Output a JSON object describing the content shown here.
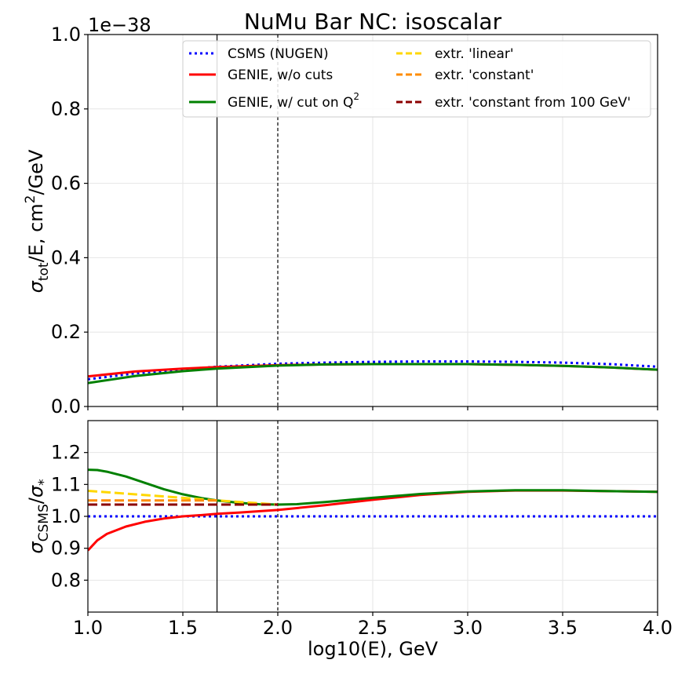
{
  "chart_data": [
    {
      "type": "line",
      "title": "NuMu Bar NC: isoscalar",
      "ylabel": "σ_tot/E, cm^2/GeV",
      "ylabel_parts": {
        "sym": "σ",
        "sub": "tot",
        "mid": "/E, cm",
        "sup": "2",
        "end": "/GeV"
      },
      "offset_text": "1e−38",
      "xlim": [
        1.0,
        4.0
      ],
      "ylim": [
        0.0,
        1.0
      ],
      "yticks": [
        "0.0",
        "0.2",
        "0.4",
        "0.6",
        "0.8",
        "1.0"
      ],
      "grid": true,
      "legend_location": "top-right",
      "legend": [
        {
          "label": "CSMS (NUGEN)",
          "color": "#0000ff",
          "style": "dotted"
        },
        {
          "label": "GENIE, w/o cuts",
          "color": "#ff0000",
          "style": "solid"
        },
        {
          "label": "GENIE, w/ cut on Q",
          "label_sup": "2",
          "color": "#008000",
          "style": "solid"
        },
        {
          "label": "extr. 'linear'",
          "color": "#ffd700",
          "style": "dashed"
        },
        {
          "label": "extr. 'constant'",
          "color": "#ff8c00",
          "style": "dashed"
        },
        {
          "label": "extr. 'constant from 100 GeV'",
          "color": "#8b0000",
          "style": "dashed"
        }
      ],
      "vlines": [
        {
          "x": 1.68,
          "style": "solid"
        },
        {
          "x": 2.0,
          "style": "dashed"
        }
      ],
      "series": [
        {
          "name": "CSMS (NUGEN)",
          "color": "#0000ff",
          "style": "dotted",
          "x": [
            1.0,
            1.25,
            1.5,
            1.68,
            2.0,
            2.25,
            2.5,
            2.75,
            3.0,
            3.25,
            3.5,
            3.75,
            4.0
          ],
          "y": [
            0.073,
            0.089,
            0.1,
            0.107,
            0.115,
            0.118,
            0.12,
            0.121,
            0.121,
            0.12,
            0.118,
            0.114,
            0.107
          ]
        },
        {
          "name": "GENIE, w/o cuts",
          "color": "#ff0000",
          "style": "solid",
          "x": [
            1.0,
            1.25,
            1.5,
            1.68,
            2.0,
            2.25,
            2.5,
            2.75,
            3.0,
            3.25,
            3.5,
            3.75,
            4.0
          ],
          "y": [
            0.081,
            0.094,
            0.102,
            0.106,
            0.111,
            0.113,
            0.114,
            0.114,
            0.114,
            0.112,
            0.109,
            0.105,
            0.099
          ]
        },
        {
          "name": "GENIE, w/ cut on Q^2",
          "color": "#008000",
          "style": "solid",
          "x": [
            1.0,
            1.25,
            1.5,
            1.68,
            2.0,
            2.25,
            2.5,
            2.75,
            3.0,
            3.25,
            3.5,
            3.75,
            4.0
          ],
          "y": [
            0.063,
            0.082,
            0.095,
            0.102,
            0.11,
            0.113,
            0.114,
            0.114,
            0.114,
            0.112,
            0.109,
            0.105,
            0.099
          ]
        }
      ]
    },
    {
      "type": "line",
      "xlabel": "log10(E), GeV",
      "ylabel": "σ_CSMS/σ_*",
      "ylabel_parts": {
        "sym": "σ",
        "sub": "CSMS",
        "mid": "/",
        "sym2": "σ",
        "sub2": "*"
      },
      "xlim": [
        1.0,
        4.0
      ],
      "ylim": [
        0.7,
        1.3
      ],
      "xticks": [
        "1.0",
        "1.5",
        "2.0",
        "2.5",
        "3.0",
        "3.5",
        "4.0"
      ],
      "yticks": [
        "0.8",
        "0.9",
        "1.0",
        "1.1",
        "1.2"
      ],
      "grid": true,
      "vlines": [
        {
          "x": 1.68,
          "style": "solid"
        },
        {
          "x": 2.0,
          "style": "dashed"
        }
      ],
      "series": [
        {
          "name": "CSMS (NUGEN)",
          "color": "#0000ff",
          "style": "dotted",
          "x": [
            1.0,
            4.0
          ],
          "y": [
            1.0,
            1.0
          ]
        },
        {
          "name": "GENIE, w/o cuts",
          "color": "#ff0000",
          "style": "solid",
          "x": [
            1.0,
            1.05,
            1.1,
            1.2,
            1.3,
            1.4,
            1.5,
            1.6,
            1.68,
            1.8,
            2.0,
            2.25,
            2.5,
            2.75,
            3.0,
            3.25,
            3.5,
            3.75,
            4.0
          ],
          "y": [
            0.893,
            0.925,
            0.945,
            0.968,
            0.983,
            0.993,
            1.0,
            1.004,
            1.008,
            1.012,
            1.02,
            1.035,
            1.052,
            1.067,
            1.077,
            1.081,
            1.081,
            1.079,
            1.077
          ]
        },
        {
          "name": "GENIE, w/ cut on Q^2",
          "color": "#008000",
          "style": "solid",
          "x": [
            1.0,
            1.05,
            1.1,
            1.2,
            1.3,
            1.4,
            1.5,
            1.6,
            1.68,
            1.8,
            1.9,
            2.0,
            2.1,
            2.25,
            2.5,
            2.75,
            3.0,
            3.25,
            3.5,
            3.75,
            4.0
          ],
          "y": [
            1.146,
            1.145,
            1.14,
            1.125,
            1.105,
            1.085,
            1.069,
            1.057,
            1.05,
            1.042,
            1.038,
            1.037,
            1.038,
            1.045,
            1.058,
            1.07,
            1.078,
            1.082,
            1.082,
            1.079,
            1.077
          ]
        },
        {
          "name": "extr. 'linear'",
          "color": "#ffd700",
          "style": "dashed",
          "x": [
            1.0,
            1.68,
            2.0
          ],
          "y": [
            1.08,
            1.05,
            1.037
          ]
        },
        {
          "name": "extr. 'constant'",
          "color": "#ff8c00",
          "style": "dashed",
          "x": [
            1.0,
            1.68
          ],
          "y": [
            1.05,
            1.05
          ]
        },
        {
          "name": "extr. 'constant from 100 GeV'",
          "color": "#8b0000",
          "style": "dashed",
          "x": [
            1.0,
            2.0
          ],
          "y": [
            1.037,
            1.037
          ]
        }
      ]
    }
  ]
}
